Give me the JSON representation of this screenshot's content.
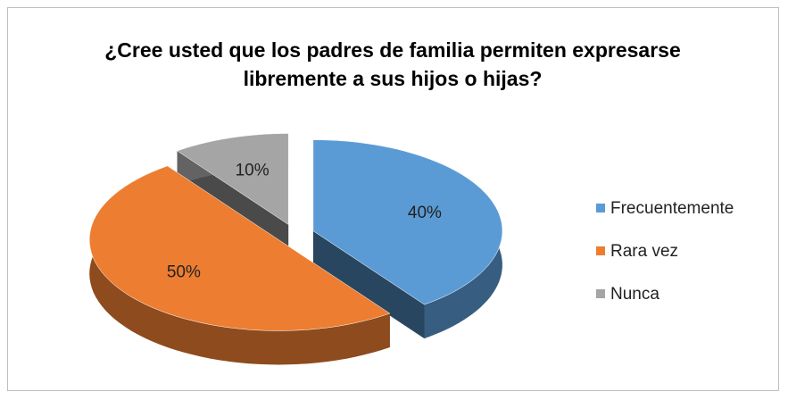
{
  "chart_data": {
    "type": "pie",
    "title": "¿Cree usted que los padres de familia permiten expresarse libremente a sus hijos o hijas?",
    "categories": [
      "Frecuentemente",
      "Rara vez",
      "Nunca"
    ],
    "values": [
      40,
      50,
      10
    ],
    "value_labels": [
      "40%",
      "50%",
      "10%"
    ],
    "colors": [
      "#5b9bd5",
      "#ed7d31",
      "#a5a5a5"
    ],
    "legend": "right"
  }
}
